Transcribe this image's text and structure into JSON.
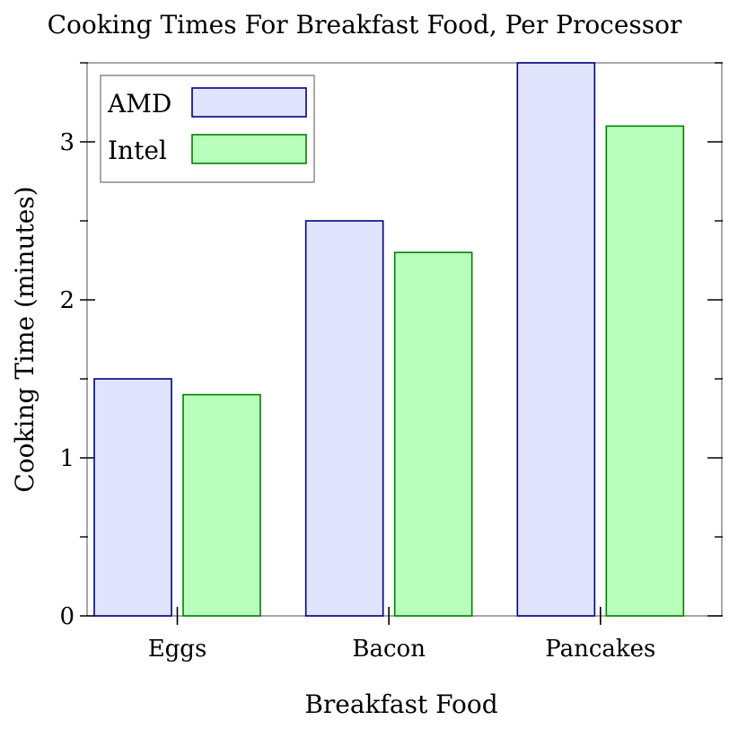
{
  "chart_data": {
    "type": "bar",
    "title": "Cooking Times For Breakfast Food, Per Processor",
    "xlabel": "Breakfast Food",
    "ylabel": "Cooking Time (minutes)",
    "categories": [
      "Eggs",
      "Bacon",
      "Pancakes"
    ],
    "series": [
      {
        "name": "AMD",
        "values": [
          1.5,
          2.5,
          3.5
        ],
        "fill": "#e0e4fc",
        "stroke": "#000080"
      },
      {
        "name": "Intel",
        "values": [
          1.4,
          2.3,
          3.1
        ],
        "fill": "#b8ffbe",
        "stroke": "#008000"
      }
    ],
    "ylim": [
      0,
      3.5
    ],
    "yticks": [
      0,
      1,
      2,
      3
    ],
    "ytick_labels": [
      "0",
      "1",
      "2",
      "3"
    ],
    "grid": false,
    "legend_position": "top-left"
  }
}
